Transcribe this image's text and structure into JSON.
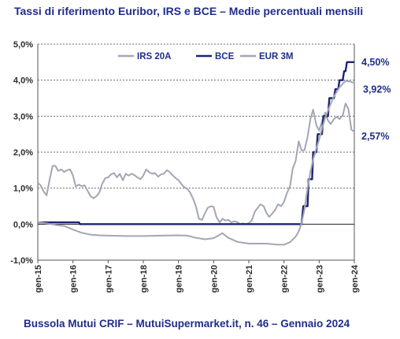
{
  "chart_data": {
    "type": "line",
    "title": "Tassi di riferimento Euribor, IRS e BCE – Medie percentuali mensili",
    "footer": "Bussola Mutui CRIF – MutuiSupermarket.it, n. 46 – Gennaio 2024",
    "ylim": [
      -1.0,
      5.0
    ],
    "y_ticks": [
      "-1,0%",
      "0,0%",
      "1,0%",
      "2,0%",
      "3,0%",
      "4,0%",
      "5,0%"
    ],
    "x_ticks": [
      "gen-15",
      "gen-16",
      "gen-17",
      "gen-18",
      "gen-19",
      "gen-20",
      "gen-21",
      "gen-22",
      "gen-23",
      "gen-24"
    ],
    "legend_position": "top",
    "annotations": [
      {
        "text": "4,50%",
        "series": "BCE"
      },
      {
        "text": "3,92%",
        "series": "EUR 3M"
      },
      {
        "text": "2,57%",
        "series": "IRS 20A"
      }
    ],
    "series": [
      {
        "name": "IRS 20A",
        "color": "#a3a6b5",
        "points": [
          [
            2015.0,
            1.15
          ],
          [
            2015.08,
            1.08
          ],
          [
            2015.17,
            0.9
          ],
          [
            2015.25,
            0.8
          ],
          [
            2015.33,
            1.2
          ],
          [
            2015.42,
            1.62
          ],
          [
            2015.5,
            1.62
          ],
          [
            2015.58,
            1.48
          ],
          [
            2015.67,
            1.52
          ],
          [
            2015.75,
            1.45
          ],
          [
            2015.83,
            1.5
          ],
          [
            2015.92,
            1.52
          ],
          [
            2016.0,
            1.35
          ],
          [
            2016.08,
            1.05
          ],
          [
            2016.17,
            1.1
          ],
          [
            2016.25,
            1.05
          ],
          [
            2016.33,
            1.08
          ],
          [
            2016.42,
            0.92
          ],
          [
            2016.5,
            0.78
          ],
          [
            2016.58,
            0.72
          ],
          [
            2016.67,
            0.78
          ],
          [
            2016.75,
            0.88
          ],
          [
            2016.83,
            1.12
          ],
          [
            2016.92,
            1.28
          ],
          [
            2017.0,
            1.3
          ],
          [
            2017.08,
            1.38
          ],
          [
            2017.17,
            1.42
          ],
          [
            2017.25,
            1.3
          ],
          [
            2017.33,
            1.4
          ],
          [
            2017.42,
            1.22
          ],
          [
            2017.5,
            1.4
          ],
          [
            2017.58,
            1.35
          ],
          [
            2017.67,
            1.4
          ],
          [
            2017.75,
            1.36
          ],
          [
            2017.83,
            1.3
          ],
          [
            2017.92,
            1.25
          ],
          [
            2018.0,
            1.35
          ],
          [
            2018.08,
            1.52
          ],
          [
            2018.17,
            1.44
          ],
          [
            2018.25,
            1.4
          ],
          [
            2018.33,
            1.42
          ],
          [
            2018.42,
            1.32
          ],
          [
            2018.5,
            1.38
          ],
          [
            2018.58,
            1.4
          ],
          [
            2018.67,
            1.5
          ],
          [
            2018.75,
            1.45
          ],
          [
            2018.83,
            1.36
          ],
          [
            2018.92,
            1.28
          ],
          [
            2019.0,
            1.22
          ],
          [
            2019.08,
            1.12
          ],
          [
            2019.17,
            1.02
          ],
          [
            2019.25,
            0.98
          ],
          [
            2019.33,
            0.88
          ],
          [
            2019.42,
            0.7
          ],
          [
            2019.5,
            0.48
          ],
          [
            2019.58,
            0.15
          ],
          [
            2019.67,
            0.12
          ],
          [
            2019.75,
            0.3
          ],
          [
            2019.83,
            0.45
          ],
          [
            2019.92,
            0.5
          ],
          [
            2020.0,
            0.48
          ],
          [
            2020.08,
            0.2
          ],
          [
            2020.17,
            0.05
          ],
          [
            2020.25,
            0.15
          ],
          [
            2020.33,
            0.1
          ],
          [
            2020.42,
            0.12
          ],
          [
            2020.5,
            0.05
          ],
          [
            2020.58,
            0.08
          ],
          [
            2020.67,
            0.06
          ],
          [
            2020.75,
            0.0
          ],
          [
            2020.83,
            0.02
          ],
          [
            2020.92,
            0.0
          ],
          [
            2021.0,
            0.03
          ],
          [
            2021.08,
            0.1
          ],
          [
            2021.17,
            0.35
          ],
          [
            2021.25,
            0.45
          ],
          [
            2021.33,
            0.55
          ],
          [
            2021.42,
            0.5
          ],
          [
            2021.5,
            0.32
          ],
          [
            2021.58,
            0.2
          ],
          [
            2021.67,
            0.3
          ],
          [
            2021.75,
            0.4
          ],
          [
            2021.83,
            0.55
          ],
          [
            2021.92,
            0.5
          ],
          [
            2022.0,
            0.62
          ],
          [
            2022.08,
            0.85
          ],
          [
            2022.17,
            1.05
          ],
          [
            2022.25,
            1.55
          ],
          [
            2022.33,
            1.75
          ],
          [
            2022.42,
            2.3
          ],
          [
            2022.5,
            2.05
          ],
          [
            2022.58,
            2.05
          ],
          [
            2022.67,
            2.42
          ],
          [
            2022.75,
            2.92
          ],
          [
            2022.83,
            3.18
          ],
          [
            2022.92,
            2.75
          ],
          [
            2023.0,
            2.6
          ],
          [
            2023.08,
            2.85
          ],
          [
            2023.17,
            3.1
          ],
          [
            2023.25,
            2.88
          ],
          [
            2023.33,
            2.78
          ],
          [
            2023.42,
            2.92
          ],
          [
            2023.5,
            2.98
          ],
          [
            2023.58,
            2.92
          ],
          [
            2023.67,
            3.02
          ],
          [
            2023.75,
            3.35
          ],
          [
            2023.83,
            3.2
          ],
          [
            2023.92,
            2.62
          ],
          [
            2024.0,
            2.57
          ]
        ]
      },
      {
        "name": "BCE",
        "color": "#1c2571",
        "points": [
          [
            2015.0,
            0.05
          ],
          [
            2016.17,
            0.05
          ],
          [
            2016.2,
            0.0
          ],
          [
            2022.5,
            0.0
          ],
          [
            2022.55,
            0.5
          ],
          [
            2022.67,
            0.5
          ],
          [
            2022.7,
            1.25
          ],
          [
            2022.8,
            1.25
          ],
          [
            2022.83,
            2.0
          ],
          [
            2022.92,
            2.0
          ],
          [
            2022.96,
            2.5
          ],
          [
            2023.08,
            2.5
          ],
          [
            2023.12,
            3.0
          ],
          [
            2023.25,
            3.0
          ],
          [
            2023.29,
            3.5
          ],
          [
            2023.42,
            3.5
          ],
          [
            2023.46,
            3.75
          ],
          [
            2023.54,
            3.75
          ],
          [
            2023.58,
            4.0
          ],
          [
            2023.67,
            4.0
          ],
          [
            2023.71,
            4.25
          ],
          [
            2023.75,
            4.25
          ],
          [
            2023.79,
            4.5
          ],
          [
            2024.0,
            4.5
          ]
        ]
      },
      {
        "name": "EUR 3M",
        "color": "#a3a6b5",
        "points": [
          [
            2015.0,
            0.06
          ],
          [
            2015.25,
            0.02
          ],
          [
            2015.5,
            -0.02
          ],
          [
            2015.75,
            -0.05
          ],
          [
            2016.0,
            -0.15
          ],
          [
            2016.25,
            -0.24
          ],
          [
            2016.5,
            -0.29
          ],
          [
            2016.75,
            -0.31
          ],
          [
            2017.0,
            -0.32
          ],
          [
            2017.5,
            -0.33
          ],
          [
            2018.0,
            -0.33
          ],
          [
            2018.5,
            -0.32
          ],
          [
            2019.0,
            -0.31
          ],
          [
            2019.25,
            -0.32
          ],
          [
            2019.5,
            -0.38
          ],
          [
            2019.75,
            -0.42
          ],
          [
            2020.0,
            -0.39
          ],
          [
            2020.25,
            -0.25
          ],
          [
            2020.42,
            -0.38
          ],
          [
            2020.67,
            -0.49
          ],
          [
            2021.0,
            -0.54
          ],
          [
            2021.5,
            -0.54
          ],
          [
            2021.83,
            -0.57
          ],
          [
            2022.0,
            -0.57
          ],
          [
            2022.17,
            -0.5
          ],
          [
            2022.33,
            -0.35
          ],
          [
            2022.42,
            -0.2
          ],
          [
            2022.5,
            0.03
          ],
          [
            2022.58,
            0.4
          ],
          [
            2022.67,
            1.0
          ],
          [
            2022.75,
            1.45
          ],
          [
            2022.83,
            1.8
          ],
          [
            2022.92,
            2.1
          ],
          [
            2023.0,
            2.35
          ],
          [
            2023.08,
            2.65
          ],
          [
            2023.17,
            2.95
          ],
          [
            2023.25,
            3.15
          ],
          [
            2023.33,
            3.35
          ],
          [
            2023.42,
            3.55
          ],
          [
            2023.5,
            3.68
          ],
          [
            2023.58,
            3.8
          ],
          [
            2023.67,
            3.9
          ],
          [
            2023.75,
            3.98
          ],
          [
            2023.83,
            3.97
          ],
          [
            2023.92,
            3.95
          ],
          [
            2024.0,
            3.92
          ]
        ]
      }
    ]
  }
}
